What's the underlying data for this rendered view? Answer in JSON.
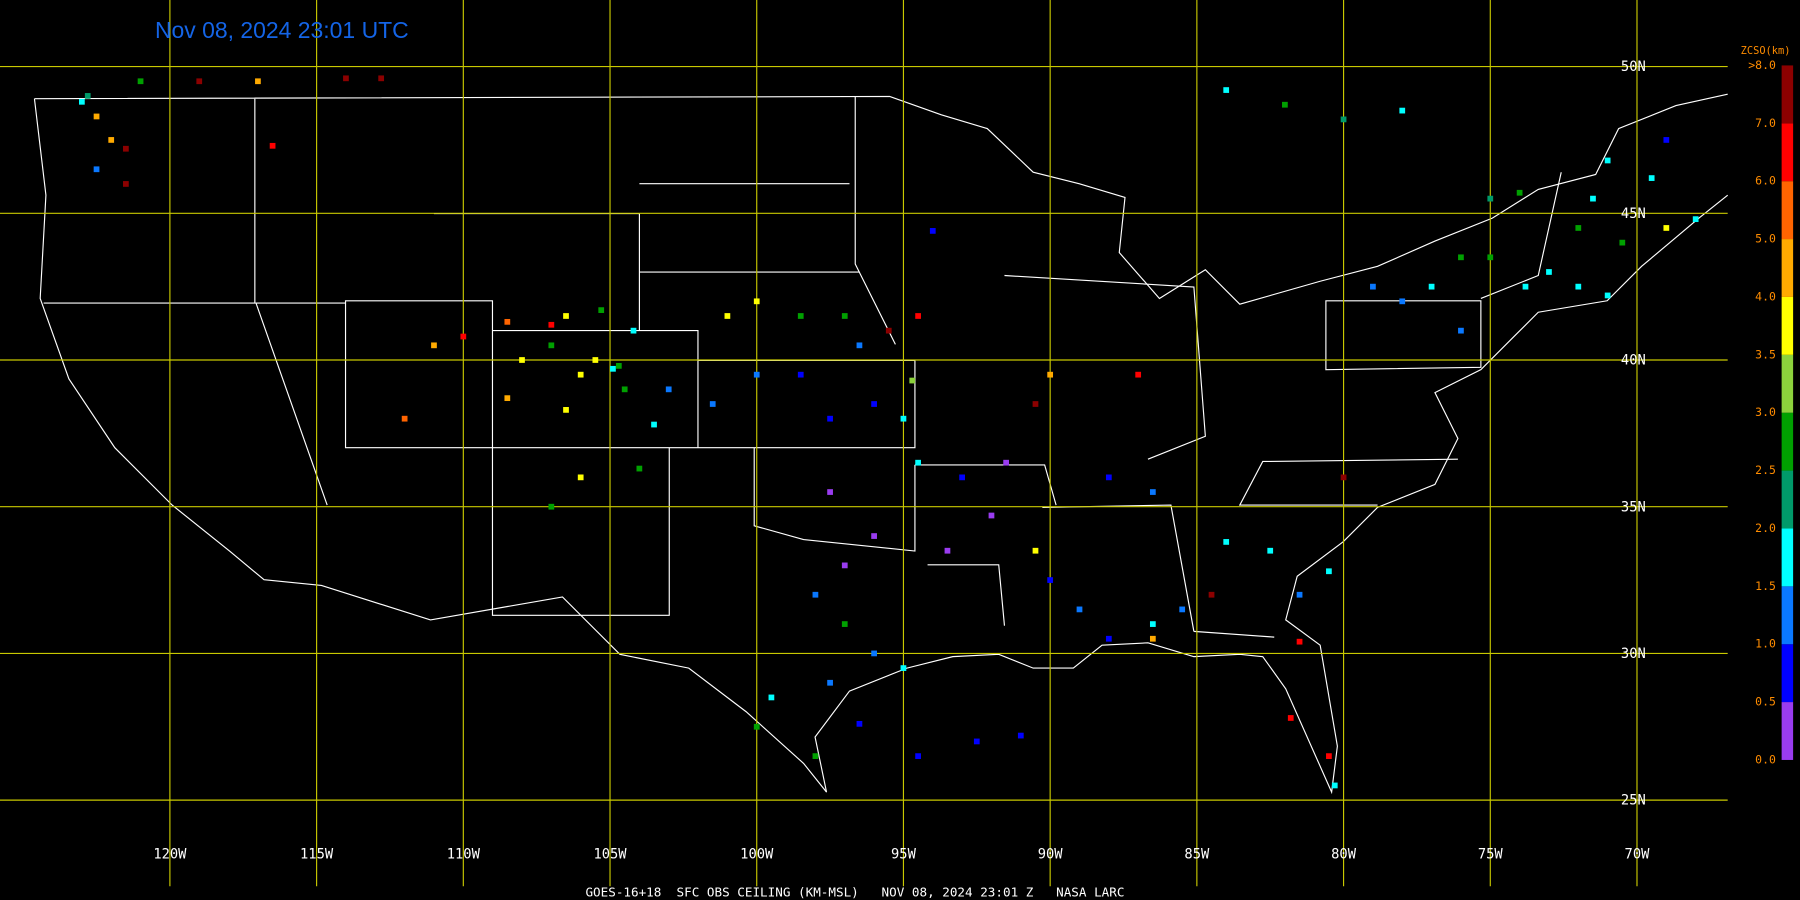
{
  "header": {
    "title": "Nov 08, 2024 23:01 UTC"
  },
  "footer": {
    "caption": "GOES-16+18  SFC OBS CEILING (KM-MSL)   NOV 08, 2024 23:01 Z   NASA LARC"
  },
  "map": {
    "lat_ticks": [
      {
        "value": 50,
        "label": "50N"
      },
      {
        "value": 45,
        "label": "45N"
      },
      {
        "value": 40,
        "label": "40N"
      },
      {
        "value": 35,
        "label": "35N"
      },
      {
        "value": 30,
        "label": "30N"
      },
      {
        "value": 25,
        "label": "25N"
      }
    ],
    "lon_ticks": [
      {
        "value": -120,
        "label": "120W"
      },
      {
        "value": -115,
        "label": "115W"
      },
      {
        "value": -110,
        "label": "110W"
      },
      {
        "value": -105,
        "label": "105W"
      },
      {
        "value": -100,
        "label": "100W"
      },
      {
        "value": -95,
        "label": "95W"
      },
      {
        "value": -90,
        "label": "90W"
      },
      {
        "value": -85,
        "label": "85W"
      },
      {
        "value": -80,
        "label": "80W"
      },
      {
        "value": -75,
        "label": "75W"
      },
      {
        "value": -70,
        "label": "70W"
      }
    ],
    "grid_color": "#c8c800",
    "stations": [
      [
        -123,
        48.8,
        1.7
      ],
      [
        -122.5,
        48.3,
        4.5
      ],
      [
        -122,
        47.5,
        4.4
      ],
      [
        -121.5,
        47.2,
        7
      ],
      [
        -122.8,
        49,
        2
      ],
      [
        -121,
        49.5,
        2.6
      ],
      [
        -119,
        49.5,
        7.5
      ],
      [
        -117,
        49.5,
        4.6
      ],
      [
        -114,
        49.6,
        7
      ],
      [
        -112.8,
        49.6,
        7
      ],
      [
        -116.5,
        47.3,
        6.5
      ],
      [
        -121.5,
        46,
        7.2
      ],
      [
        -122.5,
        46.5,
        1.2
      ],
      [
        -111,
        40.5,
        4.5
      ],
      [
        -110,
        40.8,
        6
      ],
      [
        -108.5,
        41.3,
        5
      ],
      [
        -107,
        41.2,
        6
      ],
      [
        -106.5,
        41.5,
        3.8
      ],
      [
        -105.3,
        41.7,
        2.7
      ],
      [
        -104.2,
        41,
        1.7
      ],
      [
        -105.5,
        40,
        3.7
      ],
      [
        -107,
        40.5,
        2.7
      ],
      [
        -108,
        40,
        3.7
      ],
      [
        -106,
        39.5,
        3.8
      ],
      [
        -106.5,
        38.3,
        3.8
      ],
      [
        -108.5,
        38.7,
        4.2
      ],
      [
        -104.9,
        39.7,
        1.7
      ],
      [
        -104.7,
        39.8,
        2.6
      ],
      [
        -104.5,
        39,
        2.7
      ],
      [
        -103,
        39,
        1.3
      ],
      [
        -103.5,
        37.8,
        1.7
      ],
      [
        -104,
        36.3,
        2.7
      ],
      [
        -106,
        36,
        3.5
      ],
      [
        -107,
        35,
        2.7
      ],
      [
        -112,
        38,
        5.5
      ],
      [
        -101,
        41.5,
        3.8
      ],
      [
        -100,
        42,
        3.6
      ],
      [
        -98.5,
        41.5,
        2.7
      ],
      [
        -97,
        41.5,
        2.8
      ],
      [
        -96.5,
        40.5,
        1.2
      ],
      [
        -98.5,
        39.5,
        0.8
      ],
      [
        -100,
        39.5,
        1.1
      ],
      [
        -101.5,
        38.5,
        1.2
      ],
      [
        -97.5,
        38,
        0.8
      ],
      [
        -96,
        38.5,
        0.7
      ],
      [
        -95,
        38,
        1.7
      ],
      [
        -94.7,
        39.3,
        3.2
      ],
      [
        -95.5,
        41,
        7.5
      ],
      [
        -97.5,
        35.5,
        0.3
      ],
      [
        -96,
        34,
        0.3
      ],
      [
        -97,
        33,
        0.4
      ],
      [
        -98,
        32,
        1.3
      ],
      [
        -97,
        31,
        2.7
      ],
      [
        -96,
        30,
        1.2
      ],
      [
        -95,
        29.5,
        1.6
      ],
      [
        -97.5,
        29,
        1.2
      ],
      [
        -99.5,
        28.5,
        1.6
      ],
      [
        -98,
        26.5,
        2.6
      ],
      [
        -100,
        27.5,
        2.6
      ],
      [
        -96.5,
        27.6,
        0.8
      ],
      [
        -93.5,
        33.5,
        0.3
      ],
      [
        -92,
        34.7,
        0.3
      ],
      [
        -91.5,
        36.5,
        0.4
      ],
      [
        -93,
        36,
        0.8
      ],
      [
        -94.5,
        36.5,
        1.6
      ],
      [
        -92.5,
        27,
        0.8
      ],
      [
        -91,
        27.2,
        0.6
      ],
      [
        -94.5,
        26.5,
        0.7
      ],
      [
        -90,
        32.5,
        0.7
      ],
      [
        -90.5,
        33.5,
        3.7
      ],
      [
        -89,
        31.5,
        1.2
      ],
      [
        -88,
        30.5,
        0.9
      ],
      [
        -86.5,
        30.5,
        4.2
      ],
      [
        -86.5,
        31,
        1.6
      ],
      [
        -85.5,
        31.5,
        1.2
      ],
      [
        -84,
        33.8,
        1.6
      ],
      [
        -84.5,
        32,
        7
      ],
      [
        -82.5,
        33.5,
        1.6
      ],
      [
        -81.5,
        32,
        1.2
      ],
      [
        -80.5,
        32.8,
        1.6
      ],
      [
        -81.5,
        30.4,
        6.8
      ],
      [
        -80.5,
        26.5,
        6.8
      ],
      [
        -81.8,
        27.8,
        6.5
      ],
      [
        -80.3,
        25.5,
        1.7
      ],
      [
        -86.5,
        35.5,
        1.2
      ],
      [
        -88,
        36,
        0.9
      ],
      [
        -90.5,
        38.5,
        7
      ],
      [
        -90,
        39.5,
        4.5
      ],
      [
        -87,
        39.5,
        6.8
      ],
      [
        -80,
        36,
        7
      ],
      [
        -79,
        42.5,
        1.2
      ],
      [
        -77,
        42.5,
        1.6
      ],
      [
        -76,
        43.5,
        2.5
      ],
      [
        -75,
        43.5,
        2.7
      ],
      [
        -73.8,
        42.5,
        1.6
      ],
      [
        -73,
        43,
        1.7
      ],
      [
        -72,
        42.5,
        1.6
      ],
      [
        -71,
        42.2,
        1.8
      ],
      [
        -70.5,
        44,
        2.7
      ],
      [
        -69,
        44.5,
        3.6
      ],
      [
        -68,
        44.8,
        1.7
      ],
      [
        -71.5,
        45.5,
        1.5
      ],
      [
        -72,
        44.5,
        2.7
      ],
      [
        -75,
        45.5,
        2.4
      ],
      [
        -74,
        45.7,
        2.5
      ],
      [
        -78,
        42,
        1
      ],
      [
        -76,
        41,
        1.2
      ],
      [
        -71,
        46.8,
        1.7
      ],
      [
        -69.5,
        46.2,
        1.5
      ],
      [
        -69,
        47.5,
        0.8
      ],
      [
        -78,
        48.5,
        1.7
      ],
      [
        -80,
        48.2,
        2.2
      ],
      [
        -82,
        48.7,
        2.7
      ],
      [
        -84,
        49.2,
        1.6
      ],
      [
        -94,
        44.4,
        0.9
      ],
      [
        -94.5,
        41.5,
        6.7
      ]
    ]
  },
  "colorbar": {
    "title": "ZCSO(km)",
    "ticks": [
      {
        "value": 0,
        "label": "0.0"
      },
      {
        "value": 0.5,
        "label": "0.5"
      },
      {
        "value": 1,
        "label": "1.0"
      },
      {
        "value": 1.5,
        "label": "1.5"
      },
      {
        "value": 2,
        "label": "2.0"
      },
      {
        "value": 2.5,
        "label": "2.5"
      },
      {
        "value": 3,
        "label": "3.0"
      },
      {
        "value": 3.5,
        "label": "3.5"
      },
      {
        "value": 4,
        "label": "4.0"
      },
      {
        "value": 5,
        "label": "5.0"
      },
      {
        "value": 6,
        "label": "6.0"
      },
      {
        "value": 7,
        "label": "7.0"
      },
      {
        "value": 8,
        "label": ">8.0"
      }
    ],
    "colors": [
      "#9a3cf0",
      "#0000ff",
      "#0a78ff",
      "#00ffff",
      "#009a6a",
      "#00a000",
      "#8cd23c",
      "#ffff00",
      "#ffaa00",
      "#ff6400",
      "#ff0000",
      "#8c0000"
    ]
  }
}
